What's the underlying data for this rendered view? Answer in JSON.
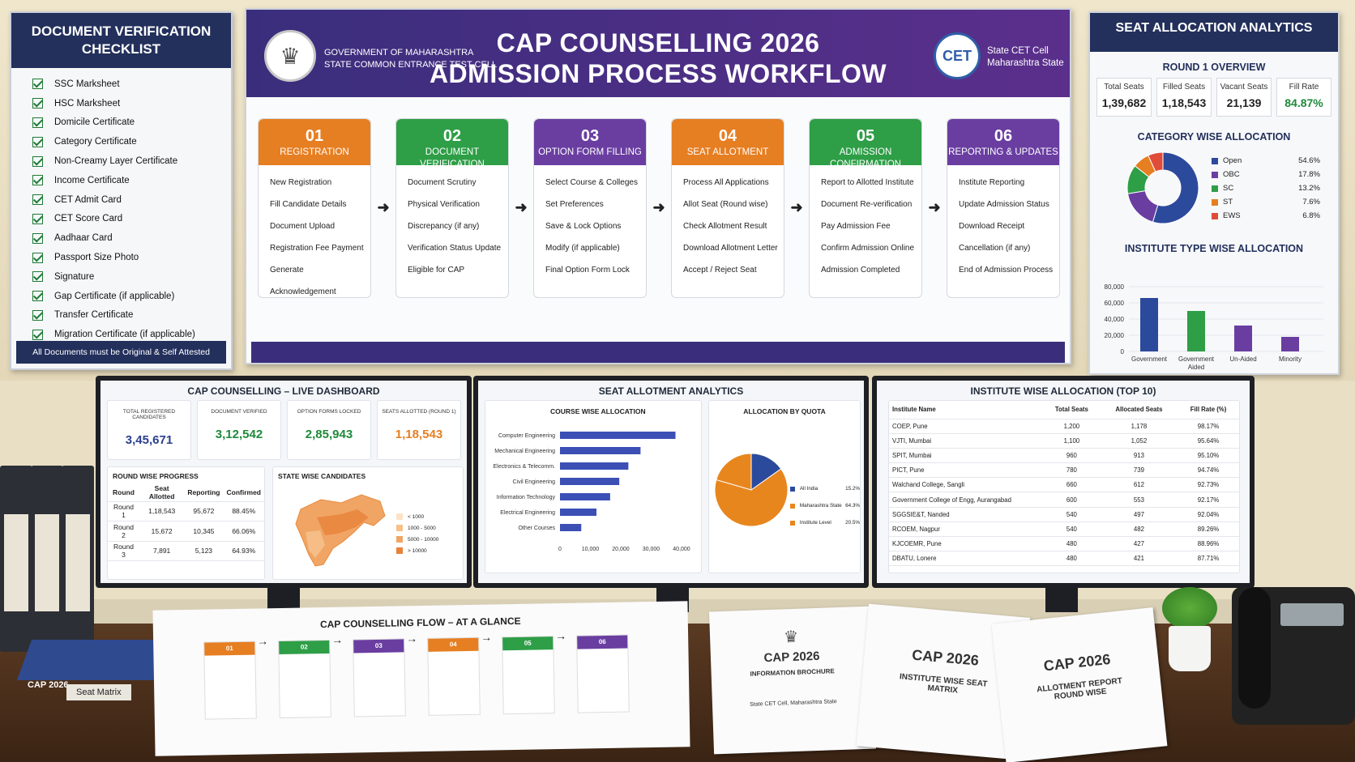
{
  "checklist": {
    "title": "DOCUMENT VERIFICATION CHECKLIST",
    "items": [
      "SSC Marksheet",
      "HSC Marksheet",
      "Domicile Certificate",
      "Category Certificate",
      "Non-Creamy Layer Certificate",
      "Income Certificate",
      "CET Admit Card",
      "CET Score Card",
      "Aadhaar Card",
      "Passport Size Photo",
      "Signature",
      "Gap Certificate (if applicable)",
      "Transfer Certificate",
      "Migration Certificate (if applicable)"
    ],
    "footer": "All Documents must be Original & Self Attested"
  },
  "workflow": {
    "gov_line1": "GOVERNMENT OF MAHARASHTRA",
    "gov_line2": "STATE COMMON ENTRANCE TEST CELL",
    "title_line1": "CAP COUNSELLING 2026",
    "title_line2": "ADMISSION PROCESS WORKFLOW",
    "cet_logo": "CET",
    "cet_line1": "State CET Cell",
    "cet_line2": "Maharashtra State",
    "steps": [
      {
        "num": "01",
        "title": "REGISTRATION",
        "color": "#e67e22",
        "items": [
          "New Registration",
          "Fill Candidate Details",
          "Document Upload",
          "Registration Fee Payment",
          "Generate Acknowledgement"
        ]
      },
      {
        "num": "02",
        "title": "DOCUMENT VERIFICATION",
        "color": "#2e9e47",
        "items": [
          "Document Scrutiny",
          "Physical Verification",
          "Discrepancy (if any)",
          "Verification Status Update",
          "Eligible for CAP"
        ]
      },
      {
        "num": "03",
        "title": "OPTION FORM FILLING",
        "color": "#6a3ea1",
        "items": [
          "Select Course & Colleges",
          "Set Preferences",
          "Save & Lock Options",
          "Modify (if applicable)",
          "Final Option Form Lock"
        ]
      },
      {
        "num": "04",
        "title": "SEAT ALLOTMENT",
        "color": "#e67e22",
        "items": [
          "Process All Applications",
          "Allot Seat (Round wise)",
          "Check Allotment Result",
          "Download Allotment Letter",
          "Accept / Reject Seat"
        ]
      },
      {
        "num": "05",
        "title": "ADMISSION CONFIRMATION",
        "color": "#2e9e47",
        "items": [
          "Report to Allotted Institute",
          "Document Re-verification",
          "Pay Admission Fee",
          "Confirm Admission Online",
          "Admission Completed"
        ]
      },
      {
        "num": "06",
        "title": "REPORTING & UPDATES",
        "color": "#6a3ea1",
        "items": [
          "Institute Reporting",
          "Update Admission Status",
          "Download Receipt",
          "Cancellation (if any)",
          "End of Admission Process"
        ]
      }
    ]
  },
  "analytics": {
    "title": "SEAT ALLOCATION ANALYTICS",
    "round_title": "ROUND 1 OVERVIEW",
    "kpis": [
      {
        "label": "Total Seats",
        "value": "1,39,682",
        "color": "#222"
      },
      {
        "label": "Filled Seats",
        "value": "1,18,543",
        "color": "#222"
      },
      {
        "label": "Vacant Seats",
        "value": "21,139",
        "color": "#222"
      },
      {
        "label": "Fill Rate",
        "value": "84.87%",
        "color": "#1e8a3a"
      }
    ],
    "category_title": "CATEGORY WISE ALLOCATION",
    "institute_title": "INSTITUTE TYPE WISE ALLOCATION"
  },
  "dashboard": {
    "title": "CAP COUNSELLING – LIVE DASHBOARD",
    "stats": [
      {
        "label": "TOTAL REGISTERED CANDIDATES",
        "value": "3,45,671",
        "color": "#2a3f8f"
      },
      {
        "label": "DOCUMENT VERIFIED",
        "value": "3,12,542",
        "color": "#1e8a3a"
      },
      {
        "label": "OPTION FORMS LOCKED",
        "value": "2,85,943",
        "color": "#1e8a3a"
      },
      {
        "label": "SEATS ALLOTTED (ROUND 1)",
        "value": "1,18,543",
        "color": "#e67e22"
      }
    ],
    "round_title": "ROUND WISE PROGRESS",
    "round_headers": [
      "Round",
      "Seat Allotted",
      "Reporting",
      "Confirmed"
    ],
    "rounds": [
      [
        "Round 1",
        "1,18,543",
        "95,672",
        "88.45%"
      ],
      [
        "Round 2",
        "15,672",
        "10,345",
        "66.06%"
      ],
      [
        "Round 3",
        "7,891",
        "5,123",
        "64.93%"
      ]
    ],
    "state_title": "STATE WISE CANDIDATES",
    "state_legend": [
      "< 1000",
      "1000 - 5000",
      "5000 - 10000",
      "> 10000"
    ]
  },
  "seat_analytics": {
    "title": "SEAT ALLOTMENT ANALYTICS",
    "course_title": "COURSE WISE ALLOCATION",
    "quota_title": "ALLOCATION BY QUOTA"
  },
  "institute_table": {
    "title": "INSTITUTE WISE ALLOCATION (TOP 10)",
    "headers": [
      "Institute Name",
      "Total Seats",
      "Allocated Seats",
      "Fill Rate (%)"
    ],
    "rows": [
      [
        "COEP, Pune",
        "1,200",
        "1,178",
        "98.17%"
      ],
      [
        "VJTI, Mumbai",
        "1,100",
        "1,052",
        "95.64%"
      ],
      [
        "SPIT, Mumbai",
        "960",
        "913",
        "95.10%"
      ],
      [
        "PICT, Pune",
        "780",
        "739",
        "94.74%"
      ],
      [
        "Walchand College, Sangli",
        "660",
        "612",
        "92.73%"
      ],
      [
        "Government College of Engg, Aurangabad",
        "600",
        "553",
        "92.17%"
      ],
      [
        "SGGSIE&T, Nanded",
        "540",
        "497",
        "92.04%"
      ],
      [
        "RCOEM, Nagpur",
        "540",
        "482",
        "89.26%"
      ],
      [
        "KJCOEMR, Pune",
        "480",
        "427",
        "88.96%"
      ],
      [
        "DBATU, Lonere",
        "480",
        "421",
        "87.71%"
      ]
    ]
  },
  "desk": {
    "binder_flat_year": "CAP 2026",
    "binder_flat_label": "Seat Matrix",
    "flow_sheet_title": "CAP COUNSELLING FLOW – AT A GLANCE",
    "brochure1_title": "CAP 2026",
    "brochure1_sub": "INFORMATION BROCHURE",
    "brochure1_foot": "State CET Cell, Maharashtra State",
    "brochure2_title": "CAP 2026",
    "brochure2_sub": "INSTITUTE WISE SEAT MATRIX",
    "brochure3_title": "CAP 2026",
    "brochure3_sub": "ALLOTMENT REPORT ROUND WISE"
  },
  "chart_data": [
    {
      "type": "pie",
      "title": "CATEGORY WISE ALLOCATION",
      "categories": [
        "Open",
        "OBC",
        "SC",
        "ST",
        "EWS"
      ],
      "values": [
        54.6,
        17.8,
        13.2,
        7.6,
        6.8
      ],
      "colors": [
        "#2c4a9c",
        "#6a3ea1",
        "#2e9e47",
        "#e67e22",
        "#e04b3a"
      ],
      "legend": "right"
    },
    {
      "type": "bar",
      "title": "INSTITUTE TYPE WISE ALLOCATION",
      "categories": [
        "Government",
        "Government Aided",
        "Un-Aided",
        "Minority"
      ],
      "values": [
        66000,
        50000,
        32000,
        18000
      ],
      "colors": [
        "#2c4a9c",
        "#2e9e47",
        "#6a3ea1",
        "#6a3ea1"
      ],
      "yticks": [
        "0",
        "20,000",
        "40,000",
        "60,000",
        "80,000"
      ],
      "ylim": [
        0,
        80000
      ]
    },
    {
      "type": "bar",
      "title": "COURSE WISE ALLOCATION",
      "orientation": "horizontal",
      "categories": [
        "Computer Engineering",
        "Mechanical Engineering",
        "Electronics & Telecomm.",
        "Civil Engineering",
        "Information Technology",
        "Electrical Engineering",
        "Other Courses"
      ],
      "values": [
        38000,
        26500,
        22500,
        19500,
        16500,
        12000,
        7000
      ],
      "xticks": [
        "0",
        "10,000",
        "20,000",
        "30,000",
        "40,000"
      ],
      "xlim": [
        0,
        40000
      ],
      "color": "#3b4fb5"
    },
    {
      "type": "pie",
      "title": "ALLOCATION BY QUOTA",
      "categories": [
        "All India",
        "Maharashtra State",
        "Institute Level"
      ],
      "values": [
        15.2,
        64.3,
        20.5
      ],
      "colors": [
        "#2c4a9c",
        "#e8861e",
        "#e8861e"
      ],
      "legend": "right"
    }
  ]
}
